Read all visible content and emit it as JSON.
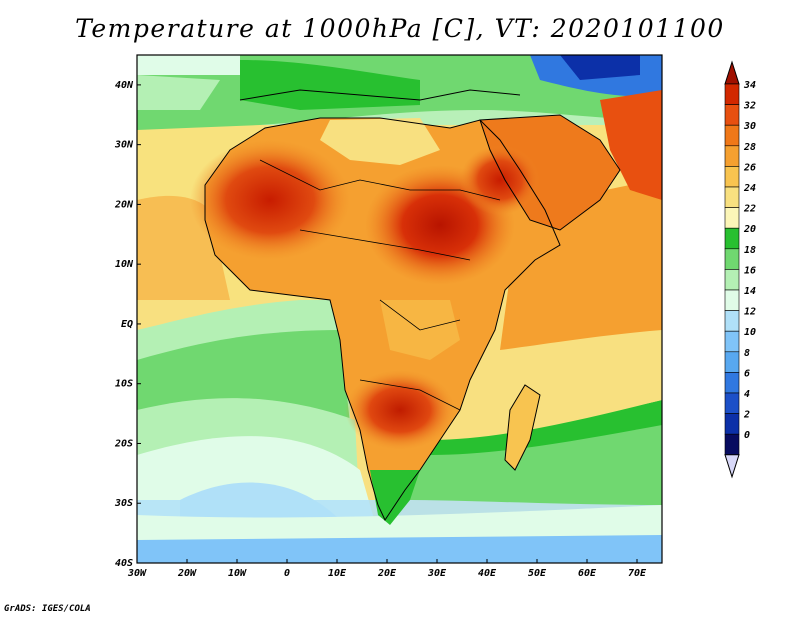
{
  "title": "Temperature at 1000hPa [C], VT: 2020101100",
  "credit": "GrADS: IGES/COLA",
  "map": {
    "lat_labels": [
      "40N",
      "30N",
      "20N",
      "10N",
      "EQ",
      "10S",
      "20S",
      "30S",
      "40S"
    ],
    "lon_labels": [
      "30W",
      "20W",
      "10W",
      "0",
      "10E",
      "20E",
      "30E",
      "40E",
      "50E",
      "60E",
      "70E"
    ],
    "lon_range": [
      -30,
      75
    ],
    "lat_range": [
      -40,
      45
    ]
  },
  "colorbar": {
    "labels": [
      "34",
      "32",
      "30",
      "28",
      "26",
      "24",
      "22",
      "20",
      "18",
      "16",
      "14",
      "12",
      "10",
      "8",
      "6",
      "4",
      "2",
      "0"
    ],
    "colors": [
      "#a01000",
      "#d22800",
      "#e85010",
      "#f07818",
      "#f5a030",
      "#f8c450",
      "#f8e080",
      "#fcf6b8",
      "#28c030",
      "#70d870",
      "#b4f0b4",
      "#e0fce8",
      "#b0e0f8",
      "#80c4f8",
      "#58a8f0",
      "#3078e0",
      "#1c50c8",
      "#0c30a8",
      "#080c60",
      "#d8d8f8"
    ]
  }
}
